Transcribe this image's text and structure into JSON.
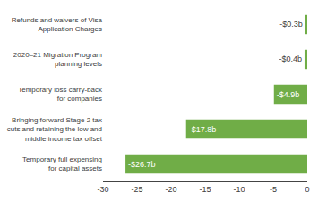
{
  "chart_data": {
    "type": "bar",
    "orientation": "horizontal",
    "categories": [
      "Temporary full expensing\nfor capital assets",
      "Bringing forward Stage 2 tax\ncuts and retaining the low and\nmiddle income tax offset",
      "Temporary loss carry-back\nfor companies",
      "2020–21 Migration Program\nplanning levels",
      "Refunds and waivers of Visa\nApplication Charges"
    ],
    "values": [
      -26.7,
      -17.8,
      -4.9,
      -0.4,
      -0.3
    ],
    "value_labels": [
      "-$26.7b",
      "-$17.8b",
      "-$4.9b",
      "-$0.4b",
      "-$0.3b"
    ],
    "data_labels": true,
    "color": "#70AD47",
    "xlim": [
      -30,
      0
    ],
    "xticks": [
      -30,
      -25,
      -20,
      -15,
      -10,
      -5,
      0
    ],
    "grid": false
  }
}
